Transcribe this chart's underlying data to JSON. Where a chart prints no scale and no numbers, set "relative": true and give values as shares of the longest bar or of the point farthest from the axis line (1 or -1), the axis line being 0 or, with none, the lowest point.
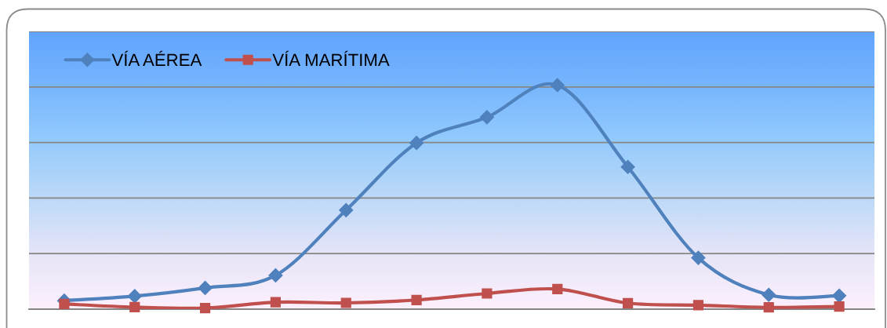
{
  "chart_data": {
    "type": "line",
    "relative": true,
    "categories": [
      null,
      null,
      null,
      null,
      null,
      null,
      null,
      null,
      null,
      null,
      null,
      null
    ],
    "series": [
      {
        "name": "VÍA AÉREA",
        "color": "#4f81bd",
        "marker": "diamond",
        "values": [
          0.038,
          0.058,
          0.095,
          0.151,
          0.442,
          0.742,
          0.857,
          1,
          0.635,
          0.229,
          0.064,
          0.06
        ]
      },
      {
        "name": "VÍA MARÍTIMA",
        "color": "#c0504d",
        "marker": "square",
        "values": [
          0.023,
          0.009,
          0.005,
          0.031,
          0.028,
          0.041,
          0.07,
          0.09,
          0.027,
          0.018,
          0.008,
          0.012
        ]
      }
    ],
    "legend": "top left",
    "grid": "y",
    "line_style": "solid"
  }
}
